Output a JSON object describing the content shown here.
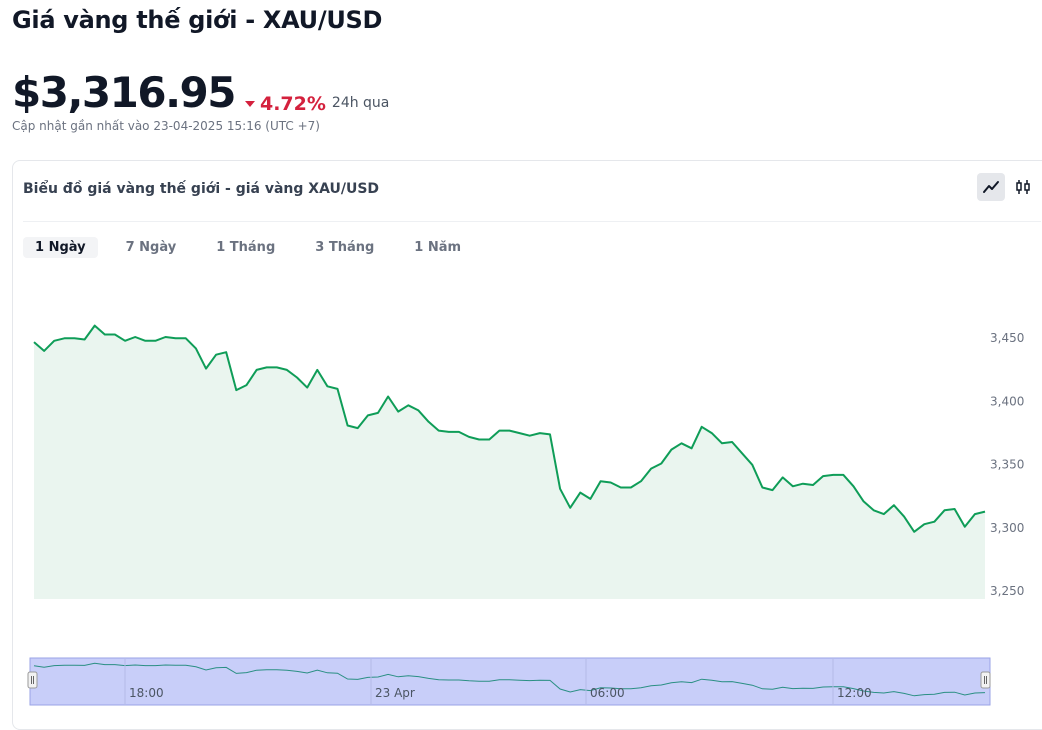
{
  "header": {
    "title": "Giá vàng thế giới - XAU/USD",
    "price": "$3,316.95",
    "change": "4.72%",
    "change_direction": "down",
    "change_period": "24h qua",
    "updated": "Cập nhật gần nhất vào 23-04-2025 15:16 (UTC +7)"
  },
  "card": {
    "title": "Biểu đồ giá vàng thế giới - giá vàng XAU/USD",
    "chart_types": [
      {
        "name": "line-chart-icon",
        "active": true
      },
      {
        "name": "candlestick-chart-icon",
        "active": false
      }
    ],
    "ranges": [
      "1 Ngày",
      "7 Ngày",
      "1 Tháng",
      "3 Tháng",
      "1 Năm"
    ],
    "active_range": "1 Ngày"
  },
  "colors": {
    "line": "#0f9d58",
    "area": "#eaf5ef",
    "negative": "#d4213d",
    "navigator_mask": "#c8cef9"
  },
  "chart_data": {
    "type": "line",
    "ylim": [
      3250,
      3450
    ],
    "y_ticks": [
      "3,450",
      "3,400",
      "3,350",
      "3,300",
      "3,250"
    ],
    "navigator_labels": [
      "18:00",
      "23 Apr",
      "06:00",
      "12:00"
    ],
    "values": [
      3446,
      3439,
      3447,
      3449,
      3449,
      3448,
      3459,
      3452,
      3452,
      3447,
      3450,
      3447,
      3447,
      3450,
      3449,
      3449,
      3441,
      3425,
      3436,
      3438,
      3408,
      3412,
      3424,
      3426,
      3426,
      3424,
      3418,
      3410,
      3424,
      3411,
      3409,
      3380,
      3378,
      3388,
      3390,
      3403,
      3391,
      3396,
      3392,
      3383,
      3376,
      3375,
      3375,
      3371,
      3369,
      3369,
      3376,
      3376,
      3374,
      3372,
      3374,
      3373,
      3330,
      3315,
      3327,
      3322,
      3336,
      3335,
      3331,
      3331,
      3336,
      3346,
      3350,
      3361,
      3366,
      3362,
      3379,
      3374,
      3366,
      3367,
      3358,
      3349,
      3331,
      3329,
      3339,
      3332,
      3334,
      3333,
      3340,
      3341,
      3341,
      3332,
      3320,
      3313,
      3310,
      3317,
      3308,
      3296,
      3302,
      3304,
      3313,
      3314,
      3300,
      3310,
      3312
    ]
  }
}
